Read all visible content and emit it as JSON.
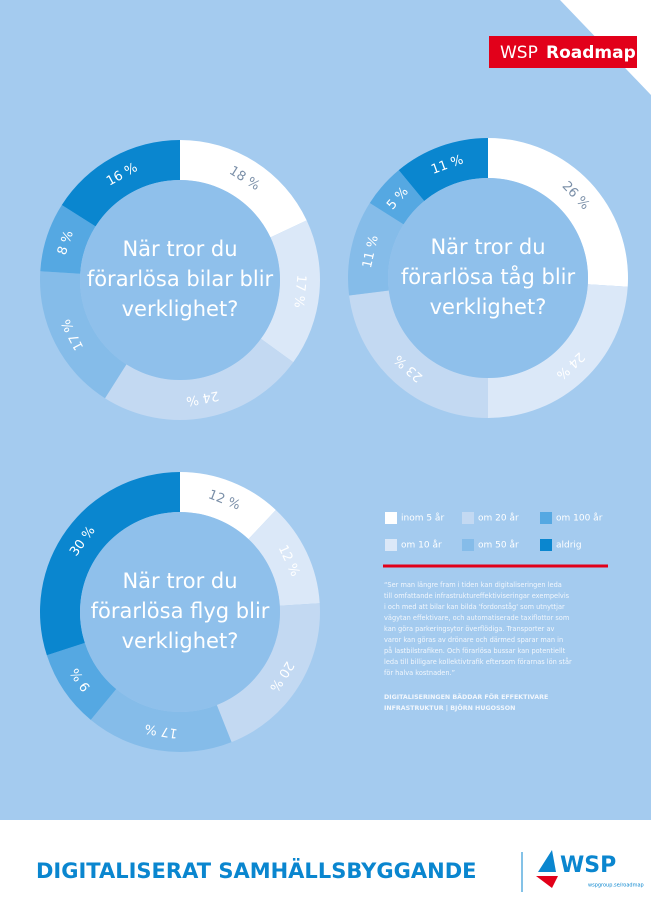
{
  "header": {
    "brand": "WSP",
    "product": "Roadmap"
  },
  "legend": {
    "labels": [
      "inom 5 år",
      "om 10 år",
      "om 20 år",
      "om 50 år",
      "om 100 år",
      "aldrig"
    ],
    "colors": [
      "#ffffff",
      "#dbe8f8",
      "#c3d9f2",
      "#85bce9",
      "#55a8e2",
      "#0a86cf"
    ]
  },
  "chart_data": [
    {
      "type": "pie",
      "title": [
        "När tror du",
        "förarlösa bilar blir",
        "verklighet?"
      ],
      "values": [
        18,
        17,
        24,
        17,
        8,
        16
      ],
      "value_labels": [
        "18 %",
        "17 %",
        "24 %",
        "17 %",
        "8 %",
        "16 %"
      ]
    },
    {
      "type": "pie",
      "title": [
        "När tror du",
        "förarlösa tåg blir",
        "verklighet?"
      ],
      "values": [
        26,
        24,
        23,
        11,
        5,
        11
      ],
      "value_labels": [
        "26 %",
        "24 %",
        "23 %",
        "11 %",
        "5 %",
        "11 %"
      ]
    },
    {
      "type": "pie",
      "title": [
        "När tror du",
        "förarlösa flyg blir",
        "verklighet?"
      ],
      "values": [
        12,
        12,
        20,
        17,
        9,
        30
      ],
      "value_labels": [
        "12 %",
        "12 %",
        "20 %",
        "17 %",
        "9 %",
        "30 %"
      ]
    }
  ],
  "quote": [
    "“Ser man längre fram i tiden kan digitaliseringen leda",
    "till omfattande infrastruktureffektiviseringar exempelvis",
    "i och med att bilar kan bilda 'fordonståg' som utnyttjar",
    "vägytan effektivare, och automatiserade taxiflottor som",
    "kan göra parkeringsytor överflödiga. Transporter av",
    "varor kan göras av drönare och därmed sparar man in",
    "på lastbilstrafiken. Och förarlösa bussar kan potentiellt",
    "leda till billigare kollektivtrafik eftersom förarnas lön står",
    "för halva kostnaden.”"
  ],
  "credit": [
    "DIGITALISERINGEN BÄDDAR FÖR EFFEKTIVARE",
    "INFRASTRUKTUR | BJÖRN HUGOSSON"
  ],
  "footer": {
    "title": "DIGITALISERAT SAMHÄLLSBYGGANDE",
    "logo": "WSP",
    "url": "wspgroup.se/roadmap"
  }
}
